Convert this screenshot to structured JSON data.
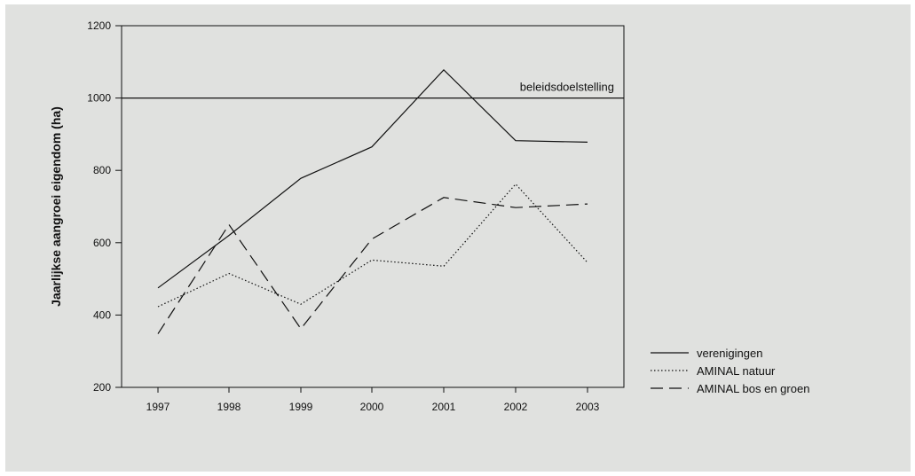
{
  "chart_data": {
    "type": "line",
    "title": "",
    "xlabel": "",
    "ylabel": "Jaarlijkse aangroei eigendom (ha)",
    "categories": [
      "1997",
      "1998",
      "1999",
      "2000",
      "2001",
      "2002",
      "2003"
    ],
    "ylim": [
      200,
      1200
    ],
    "yticks": [
      "200",
      "400",
      "600",
      "800",
      "1000",
      "1200"
    ],
    "grid": false,
    "legend_position": "right",
    "series": [
      {
        "name": "verenigingen",
        "style": "solid",
        "values": [
          475,
          620,
          778,
          865,
          1078,
          882,
          878
        ]
      },
      {
        "name": "AMINAL natuur",
        "style": "dotted",
        "values": [
          423,
          515,
          430,
          552,
          535,
          762,
          545
        ]
      },
      {
        "name": "AMINAL bos en groen",
        "style": "dashed",
        "values": [
          348,
          650,
          362,
          610,
          725,
          697,
          707
        ]
      }
    ],
    "reference_line": {
      "value": 1000,
      "label": "beleidsdoelstelling"
    },
    "colors": {
      "line": "#111111",
      "background": "#e0e1df"
    }
  }
}
